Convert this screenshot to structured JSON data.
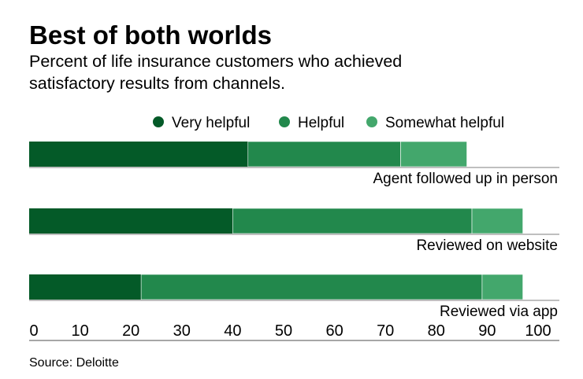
{
  "chart_data": {
    "type": "bar",
    "orientation": "horizontal",
    "stacked": true,
    "title": "Best of both worlds",
    "subtitle": [
      "Percent of life insurance customers who achieved",
      "satisfactory results from channels."
    ],
    "categories": [
      "Agent followed up in person",
      "Reviewed on website",
      "Reviewed via app"
    ],
    "series": [
      {
        "name": "Very helpful",
        "color": "#045a28",
        "values": [
          43,
          40,
          22
        ]
      },
      {
        "name": "Helpful",
        "color": "#22884c",
        "values": [
          30,
          47,
          67
        ]
      },
      {
        "name": "Somewhat helpful",
        "color": "#43a76c",
        "values": [
          13,
          10,
          8
        ]
      }
    ],
    "xlim": [
      0,
      100
    ],
    "xticks": [
      "0",
      "10",
      "20",
      "30",
      "40",
      "50",
      "60",
      "70",
      "80",
      "90",
      "100"
    ],
    "legend_position": "top-right",
    "source": "Source: Deloitte"
  }
}
